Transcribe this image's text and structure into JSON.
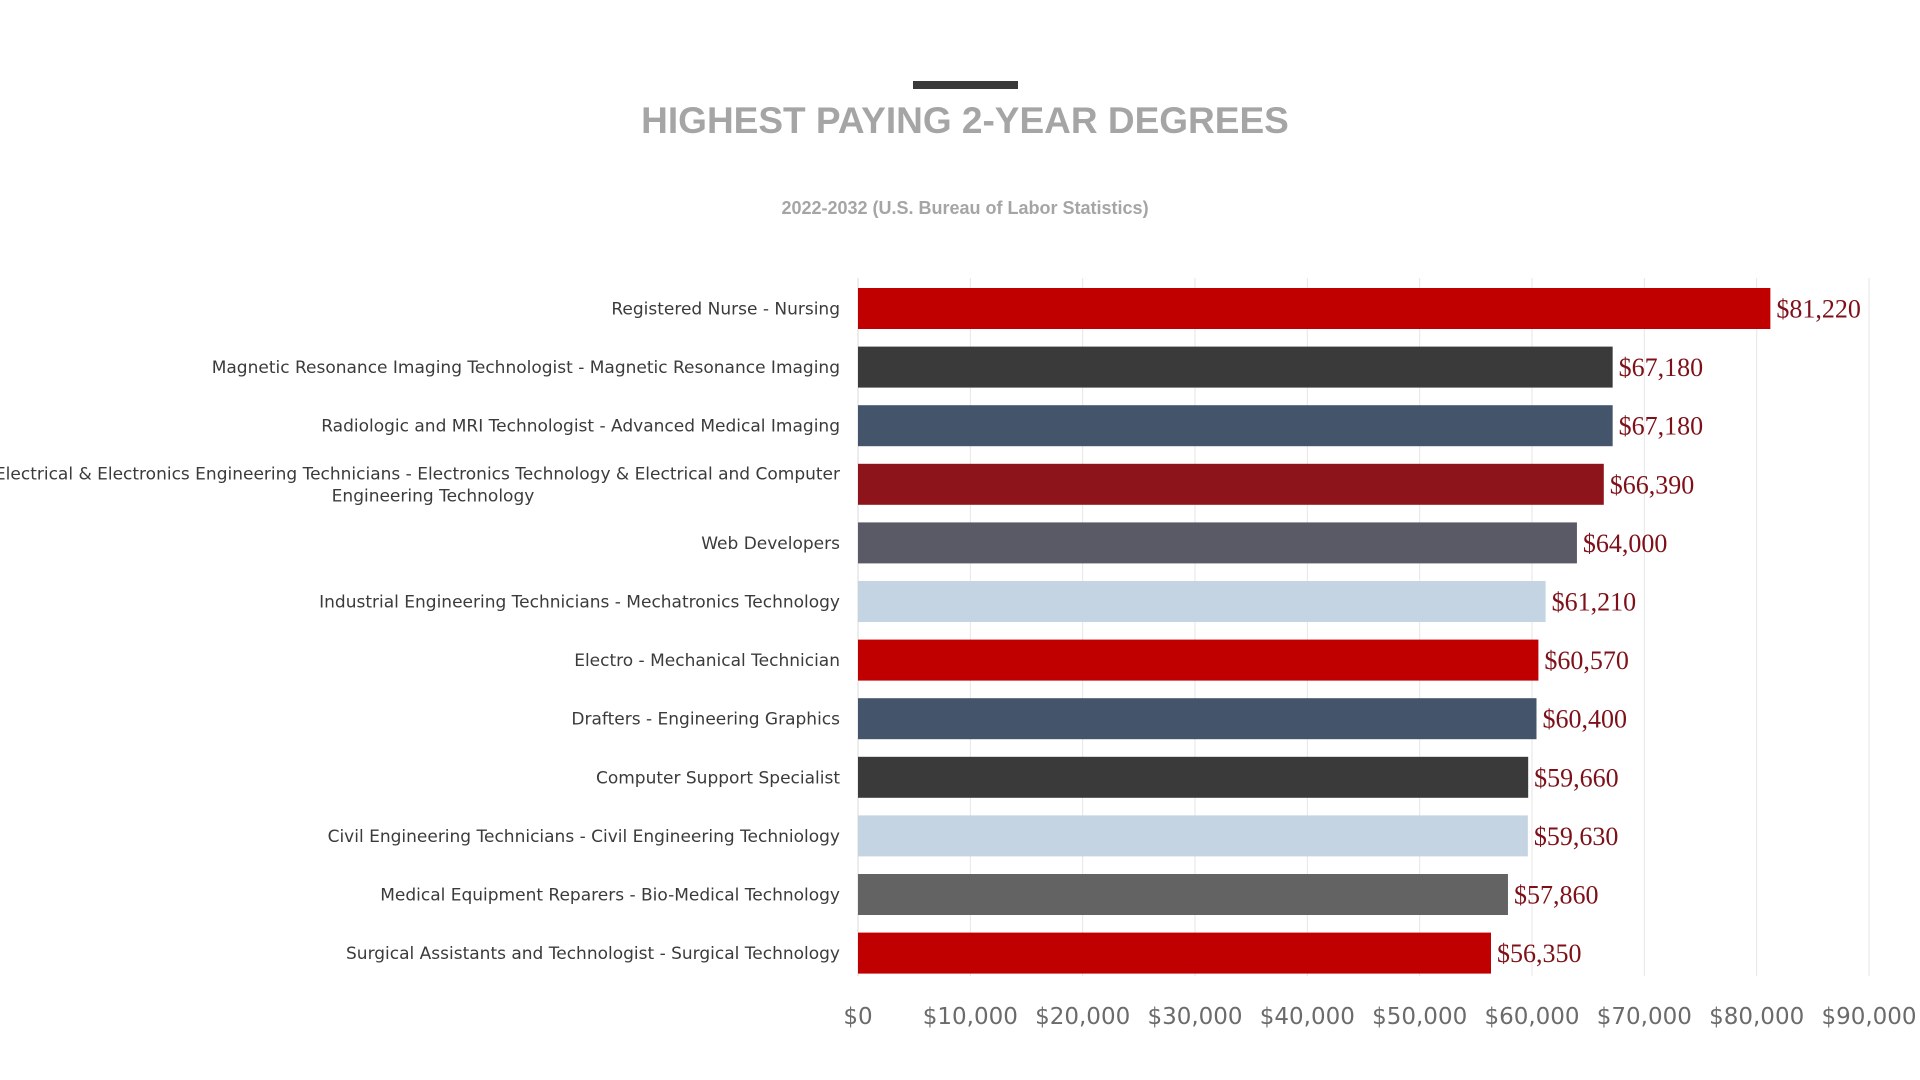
{
  "chart_data": {
    "type": "bar",
    "orientation": "horizontal",
    "title": "HIGHEST PAYING 2-YEAR DEGREES",
    "subtitle": "2022-2032 (U.S. Bureau of Labor Statistics)",
    "xlim": [
      0,
      90000
    ],
    "x_ticks": [
      0,
      10000,
      20000,
      30000,
      40000,
      50000,
      60000,
      70000,
      80000,
      90000
    ],
    "x_tick_labels": [
      "$0",
      "$10,000",
      "$20,000",
      "$30,000",
      "$40,000",
      "$50,000",
      "$60,000",
      "$70,000",
      "$80,000",
      "$90,000"
    ],
    "grid": "vertical",
    "bars": [
      {
        "label": "Registered Nurse - Nursing",
        "value": 81220,
        "value_label": "$81,220",
        "color": "#c00000"
      },
      {
        "label": "Magnetic Resonance Imaging Technologist - Magnetic Resonance Imaging",
        "value": 67180,
        "value_label": "$67,180",
        "color": "#3a3a3a"
      },
      {
        "label": "Radiologic and MRI Technologist - Advanced Medical Imaging",
        "value": 67180,
        "value_label": "$67,180",
        "color": "#44546a"
      },
      {
        "label": "Electrical & Electronics Engineering Technicians - Electronics Technology & Electrical and Computer Engineering Technology",
        "label_lines": [
          "Electrical & Electronics Engineering Technicians - Electronics Technology & Electrical and Computer",
          "Engineering Technology"
        ],
        "value": 66390,
        "value_label": "$66,390",
        "color": "#8e141b"
      },
      {
        "label": "Web Developers",
        "value": 64000,
        "value_label": "$64,000",
        "color": "#5a5a66"
      },
      {
        "label": "Industrial Engineering Technicians - Mechatronics Technology",
        "value": 61210,
        "value_label": "$61,210",
        "color": "#c5d4e3"
      },
      {
        "label": "Electro - Mechanical Technician",
        "value": 60570,
        "value_label": "$60,570",
        "color": "#c00000"
      },
      {
        "label": "Drafters - Engineering Graphics",
        "value": 60400,
        "value_label": "$60,400",
        "color": "#44546a"
      },
      {
        "label": "Computer Support Specialist",
        "value": 59660,
        "value_label": "$59,660",
        "color": "#3a3a3a"
      },
      {
        "label": "Civil Engineering Technicians - Civil Engineering Techniology",
        "value": 59630,
        "value_label": "$59,630",
        "color": "#c5d4e3"
      },
      {
        "label": "Medical Equipment Reparers - Bio-Medical Technology",
        "value": 57860,
        "value_label": "$57,860",
        "color": "#636363"
      },
      {
        "label": "Surgical Assistants and Technologist - Surgical Technology",
        "value": 56350,
        "value_label": "$56,350",
        "color": "#c00000"
      }
    ]
  }
}
